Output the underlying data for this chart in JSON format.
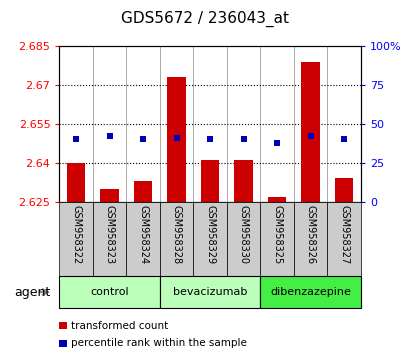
{
  "title": "GDS5672 / 236043_at",
  "samples": [
    "GSM958322",
    "GSM958323",
    "GSM958324",
    "GSM958328",
    "GSM958329",
    "GSM958330",
    "GSM958325",
    "GSM958326",
    "GSM958327"
  ],
  "red_values": [
    2.64,
    2.63,
    2.633,
    2.673,
    2.641,
    2.641,
    2.627,
    2.679,
    2.634
  ],
  "blue_percentiles": [
    40,
    42,
    40,
    41,
    40,
    40,
    38,
    42,
    40
  ],
  "ylim_left": [
    2.625,
    2.685
  ],
  "ylim_right": [
    0,
    100
  ],
  "yticks_left": [
    2.625,
    2.64,
    2.655,
    2.67,
    2.685
  ],
  "ytick_labels_left": [
    "2.625",
    "2.64",
    "2.655",
    "2.67",
    "2.685"
  ],
  "yticks_right": [
    0,
    25,
    50,
    75,
    100
  ],
  "ytick_labels_right": [
    "0",
    "25",
    "50",
    "75",
    "100%"
  ],
  "groups": [
    {
      "label": "control",
      "indices": [
        0,
        1,
        2
      ],
      "color": "#bbffbb"
    },
    {
      "label": "bevacizumab",
      "indices": [
        3,
        4,
        5
      ],
      "color": "#bbffbb"
    },
    {
      "label": "dibenzazepine",
      "indices": [
        6,
        7,
        8
      ],
      "color": "#44ee44"
    }
  ],
  "bar_color": "#cc0000",
  "dot_color": "#0000bb",
  "bar_width": 0.55,
  "baseline": 2.625,
  "agent_label": "agent",
  "legend_red": "transformed count",
  "legend_blue": "percentile rank within the sample",
  "tick_bg": "#cccccc"
}
